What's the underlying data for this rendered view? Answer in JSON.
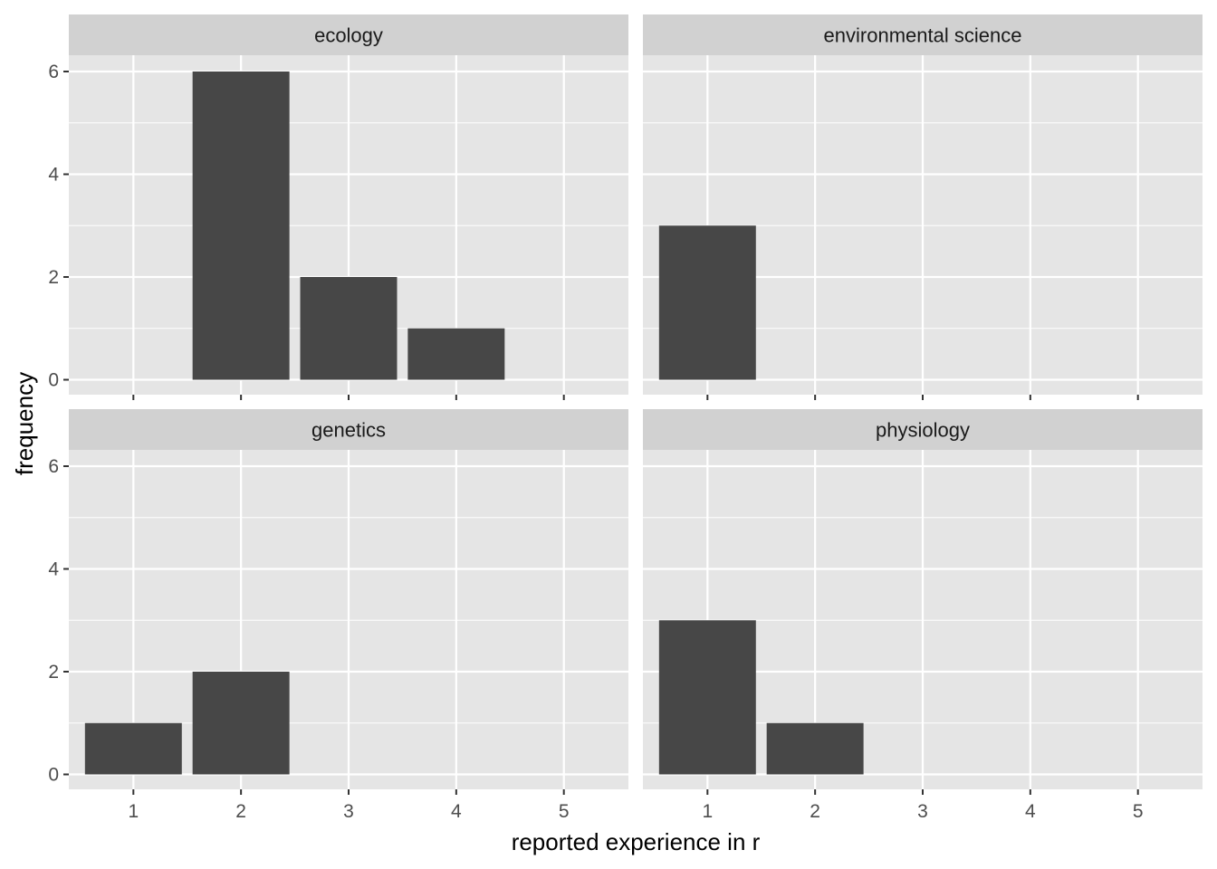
{
  "chart_data": {
    "type": "bar",
    "xlabel": "reported experience in r",
    "ylabel": "frequency",
    "x_ticks": [
      1,
      2,
      3,
      4,
      5
    ],
    "y_ticks": [
      0,
      2,
      4,
      6
    ],
    "xlim": [
      0.4,
      5.6
    ],
    "ylim": [
      0,
      6.6
    ],
    "grid": true,
    "colors": {
      "bar": "#474747",
      "panel": "#e5e5e5",
      "strip": "#d1d1d1",
      "grid": "#ffffff"
    },
    "facets": [
      {
        "name": "ecology",
        "x": [
          2,
          3,
          4
        ],
        "values": [
          6,
          2,
          1
        ]
      },
      {
        "name": "environmental science",
        "x": [
          1
        ],
        "values": [
          3
        ]
      },
      {
        "name": "genetics",
        "x": [
          1,
          2
        ],
        "values": [
          1,
          2
        ]
      },
      {
        "name": "physiology",
        "x": [
          1,
          2
        ],
        "values": [
          3,
          1
        ]
      }
    ]
  }
}
